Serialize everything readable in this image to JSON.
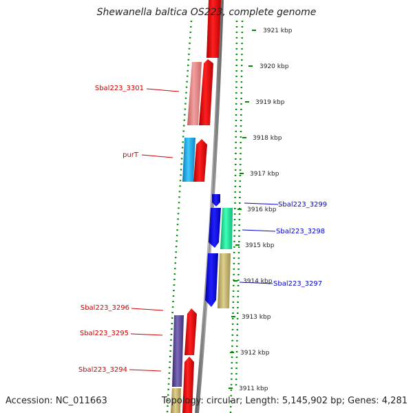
{
  "title": "Shewanella baltica OS223, complete genome",
  "footer": {
    "accession": "Accession: NC_011663",
    "topology": "Topology: circular; Length: 5,145,902 bp; Genes: 4,281"
  },
  "kbp_ticks": [
    "3921 kbp",
    "3920 kbp",
    "3919 kbp",
    "3918 kbp",
    "3917 kbp",
    "3916 kbp",
    "3915 kbp",
    "3914 kbp",
    "3913 kbp",
    "3912 kbp",
    "3911 kbp"
  ],
  "gene_labels": [
    {
      "text": "Sbal223_3301",
      "color": "#cc0000"
    },
    {
      "text": "purT",
      "color": "#cc0000"
    },
    {
      "text": "Sbal223_3299",
      "color": "#0000cc"
    },
    {
      "text": "Sbal223_3298",
      "color": "#0000cc"
    },
    {
      "text": "Sbal223_3297",
      "color": "#0000cc"
    },
    {
      "text": "Sbal223_3296",
      "color": "#cc0000"
    },
    {
      "text": "Sbal223_3295",
      "color": "#cc0000"
    },
    {
      "text": "Sbal223_3294",
      "color": "#cc0000"
    }
  ],
  "colors": {
    "forward": "#ff0000",
    "reverse": "#0000ff",
    "pink": "#f08080",
    "cyan": "#1ea8e8",
    "teal": "#20e8a0",
    "khaki": "#c8b870",
    "purple": "#5a4a9a",
    "dots": "#008800",
    "backbone": "#888888"
  }
}
